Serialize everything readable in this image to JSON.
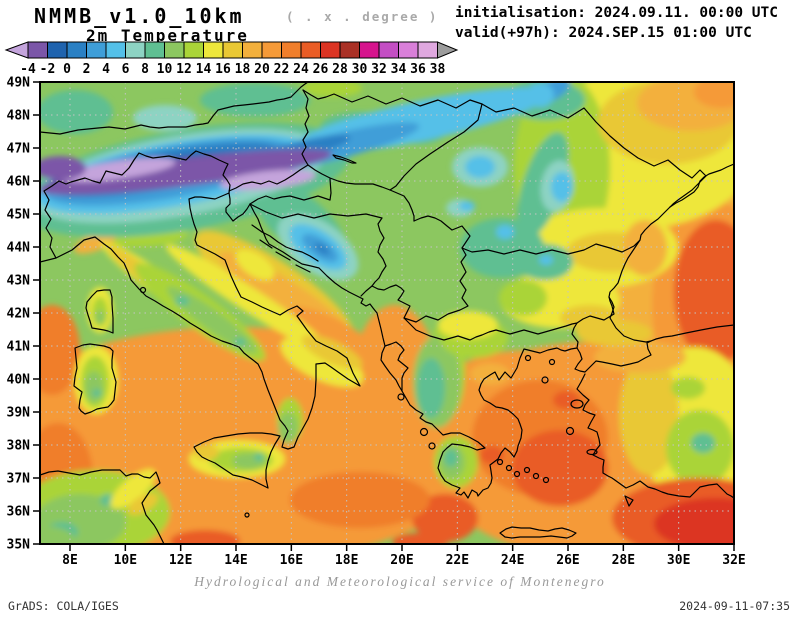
{
  "header": {
    "model_title": "NMMB_v1.0_10km",
    "model_subtitle": "( . x . degree )",
    "field_title": "2m Temperature",
    "init_line": "initialisation: 2024.09.11. 00:00 UTC",
    "valid_line": "valid(+97h): 2024.SEP.15 01:00 UTC"
  },
  "colorbar": {
    "labels": [
      "-4",
      "-2",
      "0",
      "2",
      "4",
      "6",
      "8",
      "10",
      "12",
      "14",
      "16",
      "18",
      "20",
      "22",
      "24",
      "26",
      "28",
      "30",
      "32",
      "34",
      "36",
      "38"
    ],
    "colors": [
      "#7b56a8",
      "#1f63ae",
      "#2a80c4",
      "#3f9ed8",
      "#54c0e8",
      "#8dd3c3",
      "#5fbf92",
      "#8cc760",
      "#aad438",
      "#eee73b",
      "#e9c834",
      "#f3b03c",
      "#f59a38",
      "#f07e2b",
      "#e95c25",
      "#dc3423",
      "#aa3126",
      "#d6148d",
      "#c44ec4",
      "#d97fd9",
      "#dfa8df"
    ],
    "below_min_color": "#c4a4dc",
    "above_max_color": "#9c9c9c"
  },
  "map": {
    "lat_ticks": [
      "49N",
      "48N",
      "47N",
      "46N",
      "45N",
      "44N",
      "43N",
      "42N",
      "41N",
      "40N",
      "39N",
      "38N",
      "37N",
      "36N",
      "35N"
    ],
    "lon_ticks": [
      "8E",
      "10E",
      "12E",
      "14E",
      "16E",
      "18E",
      "20E",
      "22E",
      "24E",
      "26E",
      "28E",
      "30E",
      "32E"
    ],
    "background_color": "#8cc760",
    "grid_color": "#c4c4c4"
  },
  "footer": {
    "service_credit": "Hydrological and Meteorological service of Montenegro",
    "grads_credit": "GrADS: COLA/IGES",
    "created_stamp": "2024-09-11-07:35"
  }
}
